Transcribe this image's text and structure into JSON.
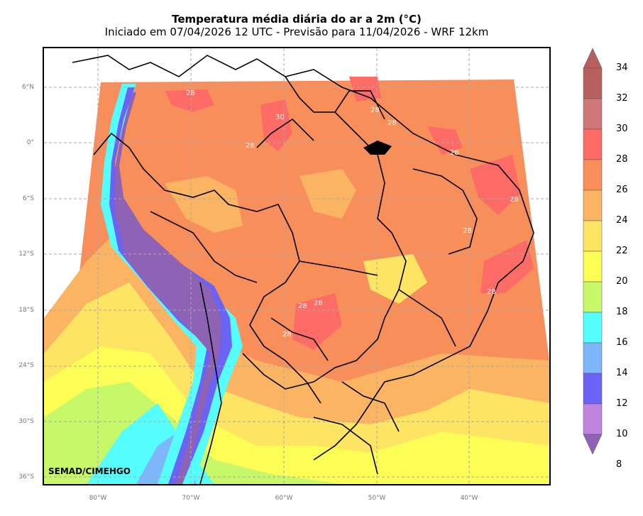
{
  "title": "Temperatura média diária do ar a 2m (°C)",
  "subtitle": "Iniciado em 07/04/2026 12 UTC - Previsão para 11/04/2026 - WRF 12km",
  "credit": "SEMAD/CIMEHGO",
  "lat_ticks": [
    "6°N",
    "0°",
    "6°S",
    "12°S",
    "18°S",
    "24°S",
    "30°S",
    "36°S"
  ],
  "lon_ticks": [
    "80°W",
    "70°W",
    "60°W",
    "50°W",
    "40°W"
  ],
  "colorbar": {
    "levels": [
      "8",
      "10",
      "12",
      "14",
      "16",
      "18",
      "20",
      "22",
      "24",
      "26",
      "28",
      "30",
      "32",
      "34"
    ],
    "colors": [
      "#8e63b5",
      "#c183e0",
      "#6b63f5",
      "#7db6f9",
      "#56fdfd",
      "#c6f86a",
      "#fcfd55",
      "#fde462",
      "#fbb461",
      "#f88f5b",
      "#fd6b66",
      "#cf787a",
      "#b86060"
    ]
  },
  "contour_labels": [
    "28",
    "30",
    "28",
    "28",
    "28",
    "28",
    "28",
    "28",
    "28",
    "28",
    "28",
    "28"
  ],
  "colors": {
    "background": "#ffffff",
    "frame": "#000000",
    "grid": "#aaaaaa",
    "land_dominant": "#f88f5b",
    "ocean_warm": "#fbb461"
  }
}
